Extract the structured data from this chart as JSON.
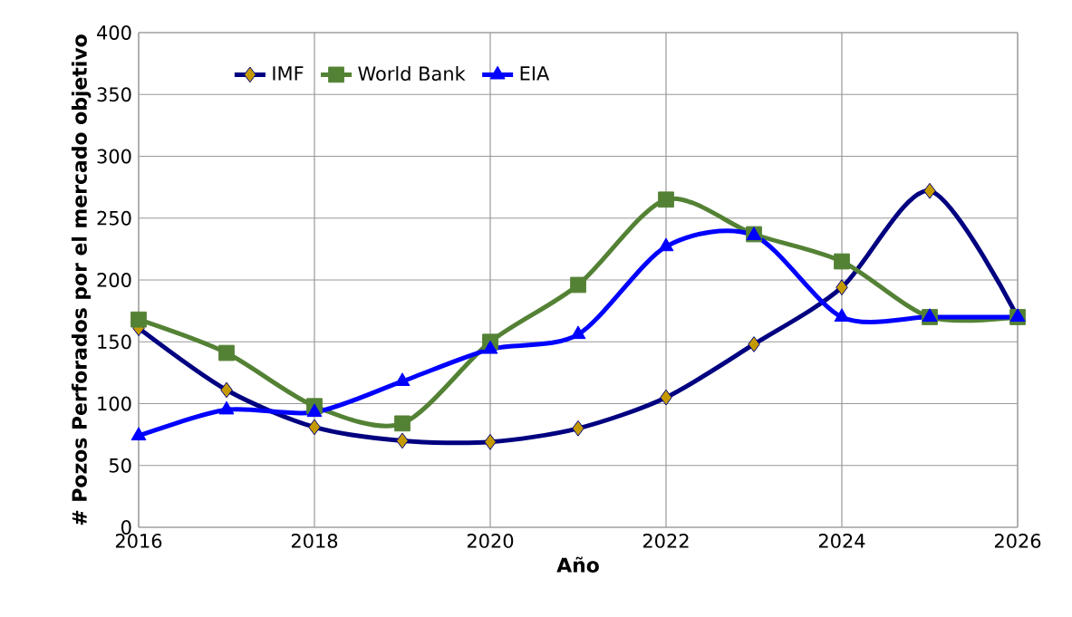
{
  "chart_data": {
    "type": "line",
    "xlabel": "Año",
    "ylabel": "# Pozos Perforados por el mercado objetivo",
    "x": [
      2016,
      2017,
      2018,
      2019,
      2020,
      2021,
      2022,
      2023,
      2024,
      2025,
      2026
    ],
    "series": [
      {
        "name": "IMF",
        "color": "#000080",
        "marker": "diamond",
        "values": [
          161,
          111,
          81,
          70,
          69,
          80,
          105,
          148,
          194,
          272,
          170
        ]
      },
      {
        "name": "World Bank",
        "color": "#548235",
        "marker": "square",
        "values": [
          168,
          141,
          98,
          84,
          150,
          196,
          265,
          237,
          215,
          170,
          170
        ]
      },
      {
        "name": "EIA",
        "color": "#0000ff",
        "marker": "triangle",
        "values": [
          74,
          95,
          93,
          118,
          144,
          156,
          227,
          236,
          170,
          170,
          170
        ]
      }
    ],
    "xlim": [
      2016,
      2026
    ],
    "xticks": [
      2016,
      2018,
      2020,
      2022,
      2024,
      2026
    ],
    "ylim": [
      0,
      400
    ],
    "yticks": [
      0,
      50,
      100,
      150,
      200,
      250,
      300,
      350,
      400
    ],
    "grid": true,
    "legend": "top left",
    "line_style": "solid"
  }
}
